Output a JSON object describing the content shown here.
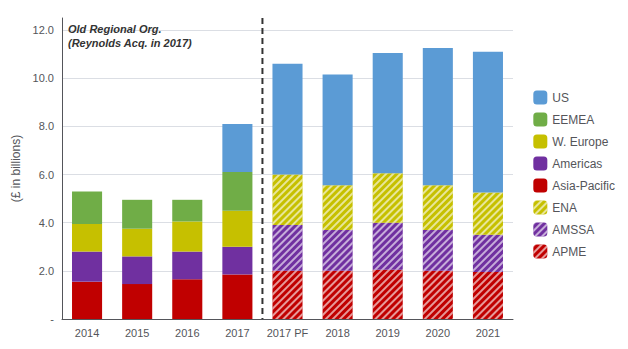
{
  "chart_data": {
    "type": "bar",
    "stacked": true,
    "grid": true,
    "legend": "right",
    "categories": [
      "2014",
      "2015",
      "2016",
      "2017",
      "2017 PF",
      "2018",
      "2019",
      "2020",
      "2021"
    ],
    "ylabel": "(£ in billions)",
    "annotation": "Old Regional Org.\n(Reynolds Acq. in 2017)",
    "ylim": [
      0,
      12.5
    ],
    "yticks": [
      {
        "value": 0,
        "label": "-"
      },
      {
        "value": 2.0,
        "label": "2.0"
      },
      {
        "value": 4.0,
        "label": "4.0"
      },
      {
        "value": 6.0,
        "label": "6.0"
      },
      {
        "value": 8.0,
        "label": "8.0"
      },
      {
        "value": 10.0,
        "label": "10.0"
      },
      {
        "value": 12.0,
        "label": "12.0"
      }
    ],
    "series": [
      {
        "name": "US",
        "color": "#5b9bd5",
        "values": [
          0.0,
          0.0,
          0.0,
          2.0,
          4.6,
          4.6,
          5.0,
          5.7,
          5.85
        ]
      },
      {
        "name": "EEMEA",
        "color": "#70ad47",
        "values": [
          1.35,
          1.2,
          0.9,
          1.6,
          null,
          null,
          null,
          null,
          null
        ]
      },
      {
        "name": "W. Europe",
        "color": "#c6c000",
        "values": [
          1.15,
          1.15,
          1.25,
          1.5,
          null,
          null,
          null,
          null,
          null
        ]
      },
      {
        "name": "Americas",
        "color": "#7030a0",
        "values": [
          1.25,
          1.15,
          1.15,
          1.15,
          null,
          null,
          null,
          null,
          null
        ]
      },
      {
        "name": "Asia-Pacific",
        "color": "#c00000",
        "values": [
          1.55,
          1.45,
          1.65,
          1.85,
          null,
          null,
          null,
          null,
          null
        ]
      },
      {
        "name": "ENA",
        "color": "#c6c000",
        "marker": "hatch",
        "values": [
          null,
          null,
          null,
          null,
          2.1,
          1.85,
          2.05,
          1.85,
          1.75
        ]
      },
      {
        "name": "AMSSA",
        "color": "#7030a0",
        "marker": "hatch",
        "values": [
          null,
          null,
          null,
          null,
          1.9,
          1.7,
          1.95,
          1.7,
          1.55
        ]
      },
      {
        "name": "APME",
        "color": "#c00000",
        "marker": "hatch",
        "values": [
          null,
          null,
          null,
          null,
          2.0,
          2.0,
          2.05,
          2.0,
          1.95
        ]
      }
    ]
  }
}
